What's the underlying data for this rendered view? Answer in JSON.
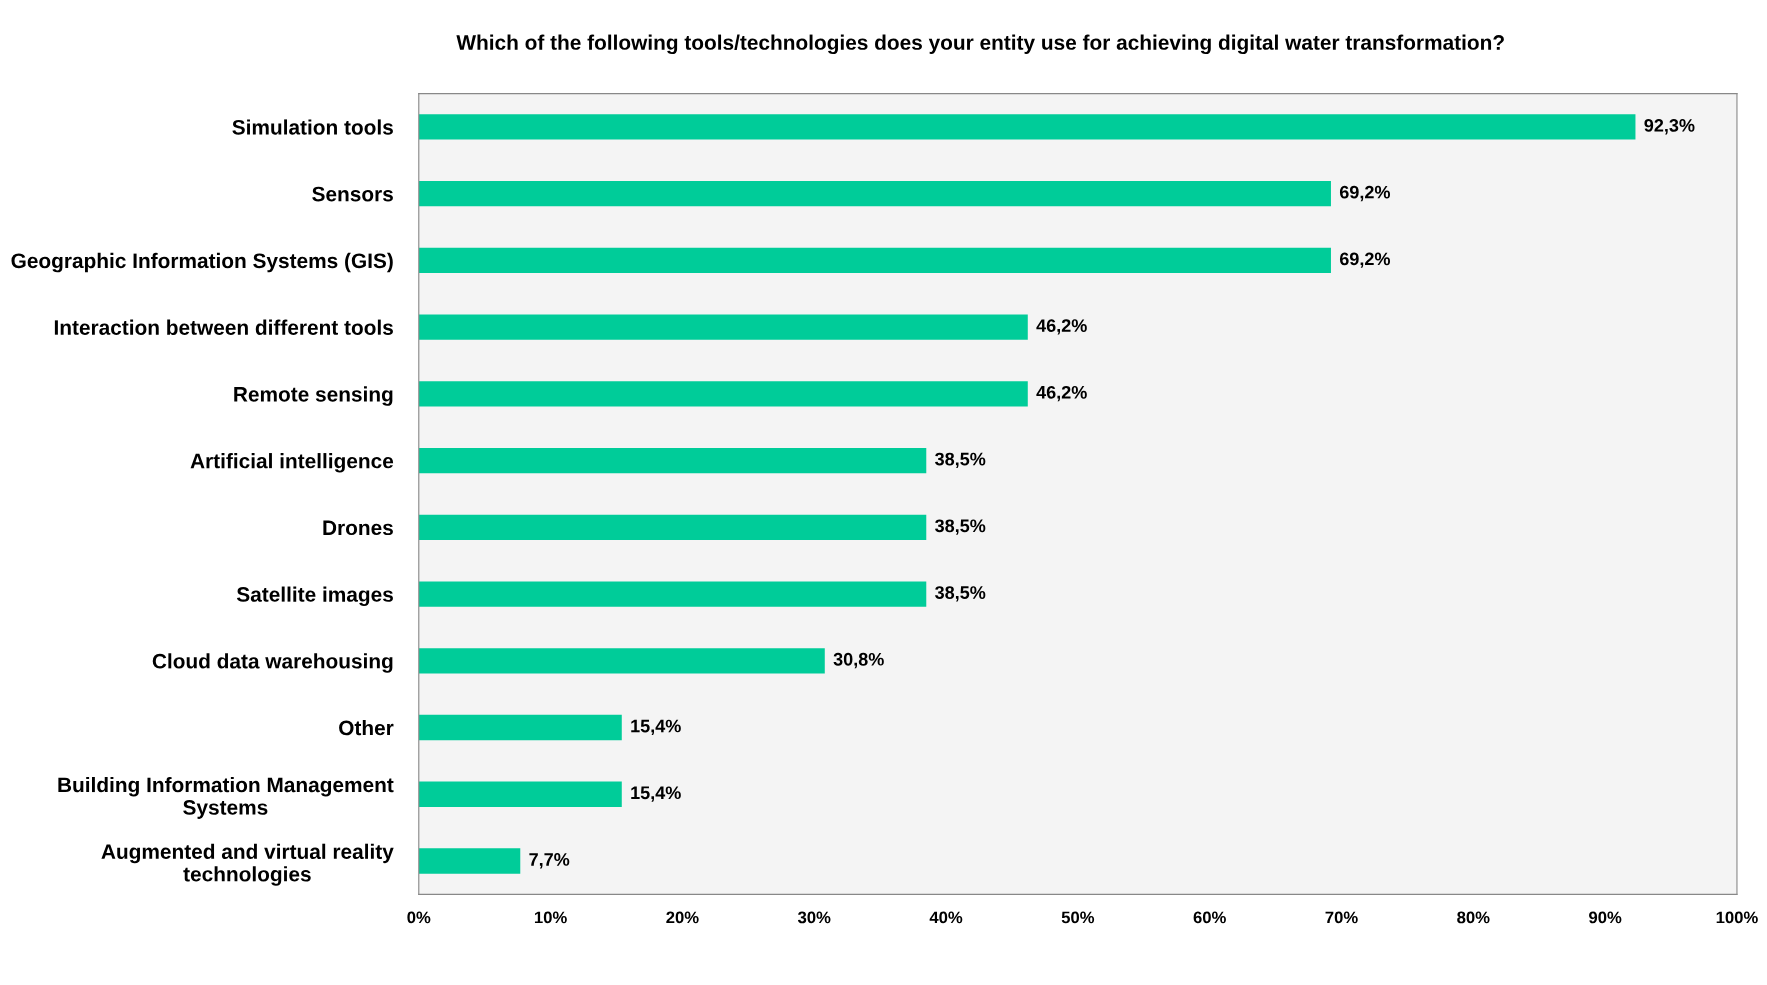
{
  "chart_data": {
    "type": "bar",
    "orientation": "horizontal",
    "title": "Which of the following tools/technologies does your entity use for achieving digital water transformation?",
    "categories": [
      "Simulation tools",
      "Sensors",
      "Geographic Information Systems (GIS)",
      "Interaction between different tools",
      "Remote sensing",
      "Artificial intelligence",
      "Drones",
      "Satellite images",
      "Cloud data warehousing",
      "Other",
      "Building Information Management Systems",
      "Augmented and virtual reality technologies"
    ],
    "values": [
      92.3,
      69.2,
      69.2,
      46.2,
      46.2,
      38.5,
      38.5,
      38.5,
      30.8,
      15.4,
      15.4,
      7.7
    ],
    "value_labels": [
      "92,3%",
      "69,2%",
      "69,2%",
      "46,2%",
      "46,2%",
      "38,5%",
      "38,5%",
      "38,5%",
      "30,8%",
      "15,4%",
      "15,4%",
      "7,7%"
    ],
    "color": "#00cc99",
    "xlim": [
      0,
      100
    ],
    "xticks": [
      {
        "value": 0,
        "label": "0%"
      },
      {
        "value": 10,
        "label": "10%"
      },
      {
        "value": 20,
        "label": "20%"
      },
      {
        "value": 30,
        "label": "30%"
      },
      {
        "value": 40,
        "label": "40%"
      },
      {
        "value": 50,
        "label": "50%"
      },
      {
        "value": 60,
        "label": "60%"
      },
      {
        "value": 70,
        "label": "70%"
      },
      {
        "value": 80,
        "label": "80%"
      },
      {
        "value": 90,
        "label": "90%"
      },
      {
        "value": 100,
        "label": "100%"
      }
    ],
    "grid": false,
    "legend": false
  }
}
